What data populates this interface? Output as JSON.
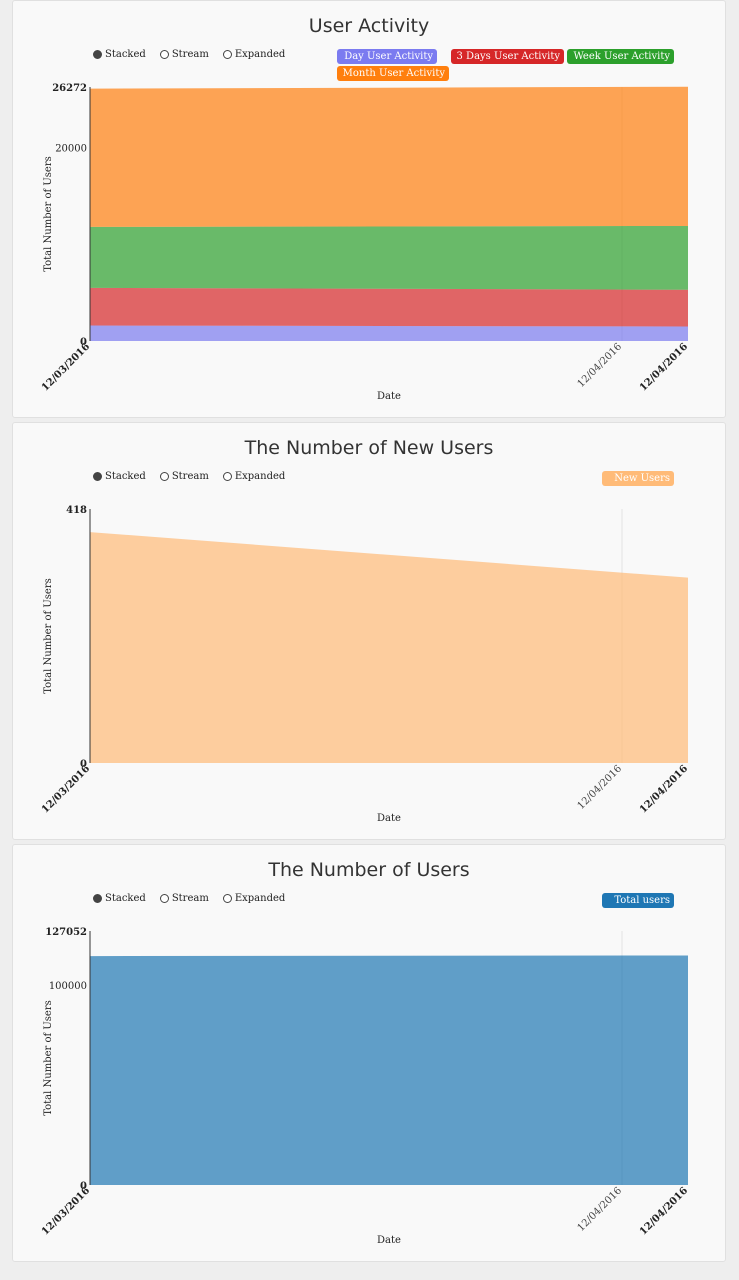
{
  "controls": {
    "stacked": "Stacked",
    "stream": "Stream",
    "expanded": "Expanded"
  },
  "chart_data": [
    {
      "type": "area",
      "title": "User Activity",
      "xlabel": "Date",
      "ylabel": "Total Number of Users",
      "ylim": [
        0,
        26272
      ],
      "y_ticks": [
        "0",
        "20000",
        "26272"
      ],
      "x_tick_labels": [
        "12/03/2016",
        "12/04/2016",
        "12/04/2016"
      ],
      "stacked": true,
      "series": [
        {
          "name": "Day User Activity",
          "color": "#7b7bf0",
          "values": [
            1600,
            1500
          ]
        },
        {
          "name": "3 Days User Activity",
          "color": "#d62728",
          "values": [
            3900,
            3800
          ]
        },
        {
          "name": "Week User Activity",
          "color": "#2ca02c",
          "values": [
            6300,
            6600
          ]
        },
        {
          "name": "Month User Activity",
          "color": "#ff7f0e",
          "values": [
            14300,
            14400
          ]
        }
      ]
    },
    {
      "type": "area",
      "title": "The Number of New Users",
      "xlabel": "Date",
      "ylabel": "Total Number of Users",
      "ylim": [
        0,
        418
      ],
      "y_ticks": [
        "0",
        "418"
      ],
      "x_tick_labels": [
        "12/03/2016",
        "12/04/2016",
        "12/04/2016"
      ],
      "stacked": true,
      "series": [
        {
          "name": "New Users",
          "color": "#ffbb78",
          "values": [
            380,
            305
          ]
        }
      ]
    },
    {
      "type": "area",
      "title": "The Number of Users",
      "xlabel": "Date",
      "ylabel": "Total Number of Users",
      "ylim": [
        0,
        127052
      ],
      "y_ticks": [
        "0",
        "100000",
        "127052"
      ],
      "x_tick_labels": [
        "12/03/2016",
        "12/04/2016",
        "12/04/2016"
      ],
      "stacked": true,
      "series": [
        {
          "name": "Total users",
          "color": "#1f77b4",
          "values": [
            114500,
            114800
          ]
        }
      ]
    }
  ]
}
